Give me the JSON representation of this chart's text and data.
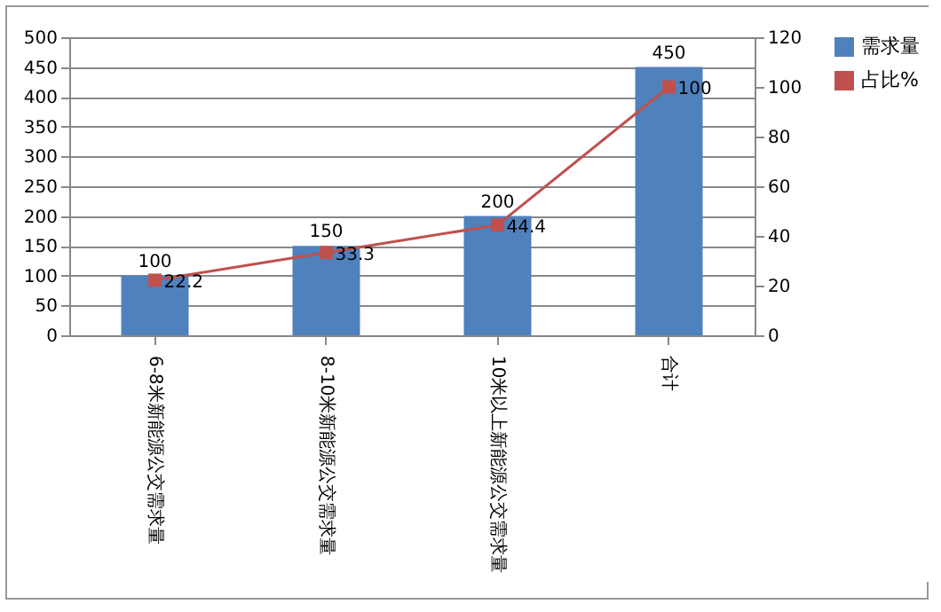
{
  "chart_data": {
    "type": "bar",
    "categories": [
      "6-8米新能源公交需求量",
      "8-10米新能源公交需求量",
      "10米以上新能源公交需求量",
      "合计"
    ],
    "series": [
      {
        "name": "需求量",
        "color": "#4f81bd",
        "values": [
          100,
          150,
          200,
          450
        ]
      },
      {
        "name": "占比%",
        "type": "line",
        "axis": "y2",
        "color": "#c0504d",
        "marker": "square",
        "values": [
          22.2,
          33.3,
          44.4,
          100
        ]
      }
    ],
    "ylim": [
      0,
      500
    ],
    "yticks": [
      0,
      50,
      100,
      150,
      200,
      250,
      300,
      350,
      400,
      450,
      500
    ],
    "y2lim": [
      0,
      120
    ],
    "y2ticks": [
      0,
      20,
      40,
      60,
      80,
      100,
      120
    ],
    "grid": "y",
    "legend": "right",
    "data_labels": true
  }
}
